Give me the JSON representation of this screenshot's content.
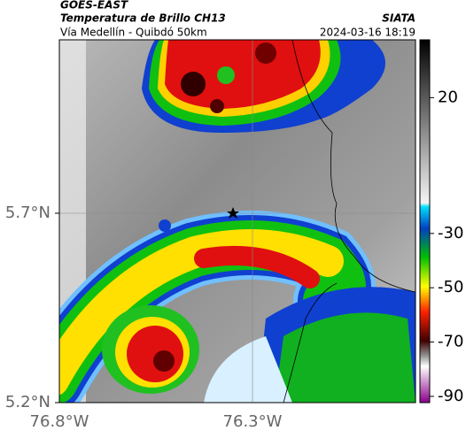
{
  "header": {
    "title": "GOES-EAST",
    "subtitle": "Temperatura de Brillo CH13",
    "route": "Vía Medellín - Quibdó 50km",
    "source": "SIATA",
    "datetime": "2024-03-16 18:19"
  },
  "map": {
    "lat_labels": [
      "5.7°N",
      "5.2°N"
    ],
    "lon_labels": [
      "76.8°W",
      "76.3°W"
    ]
  },
  "colorbar": {
    "range": [
      41.3,
      -92.3
    ],
    "ticks": [
      20,
      -30,
      -50,
      -70,
      -90
    ]
  }
}
